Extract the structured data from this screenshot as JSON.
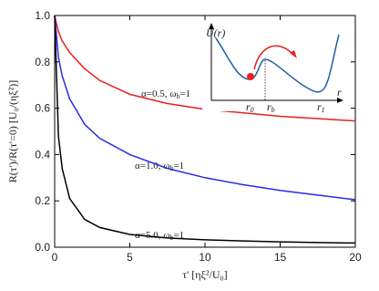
{
  "chart_data": {
    "type": "line",
    "x_label": "τ' [ηξ²/U₀]",
    "y_label": "R(τ')/R(τ'=0) [U₀/(ηξ²)]",
    "x": [
      0,
      0.25,
      0.5,
      1,
      2,
      3,
      5,
      7.5,
      10,
      12.5,
      15,
      17.5,
      20
    ],
    "series": [
      {
        "color": "#e8201e",
        "values": [
          1,
          0.93,
          0.89,
          0.84,
          0.77,
          0.72,
          0.66,
          0.62,
          0.595,
          0.58,
          0.565,
          0.555,
          0.545
        ]
      },
      {
        "color": "#2a2ae6",
        "values": [
          1,
          0.82,
          0.74,
          0.64,
          0.53,
          0.47,
          0.4,
          0.34,
          0.3,
          0.27,
          0.245,
          0.225,
          0.205
        ]
      },
      {
        "color": "#000000",
        "values": [
          1,
          0.48,
          0.34,
          0.21,
          0.12,
          0.085,
          0.055,
          0.04,
          0.032,
          0.027,
          0.023,
          0.02,
          0.018
        ]
      }
    ],
    "annotations": [
      [
        "α=0.5, ω",
        "b",
        "=1"
      ],
      [
        "α=1.0, ω",
        "b",
        "=1"
      ],
      [
        "α=5.0, ω",
        "b",
        "=1"
      ]
    ],
    "xlim": [
      0,
      20
    ],
    "xticks": [
      0,
      5,
      10,
      15,
      20
    ],
    "ylim": [
      0,
      1
    ],
    "yticks": [
      {
        "value": 0,
        "label": "0.0"
      },
      0.2,
      0.4,
      0.6,
      0.8,
      {
        "value": 1,
        "label": "1.0"
      }
    ]
  },
  "inset": {
    "y_label": "U(r)",
    "x_label": "r",
    "markers": [
      [
        "r",
        "0"
      ],
      [
        "r",
        "b"
      ],
      [
        "r",
        "1"
      ]
    ]
  }
}
